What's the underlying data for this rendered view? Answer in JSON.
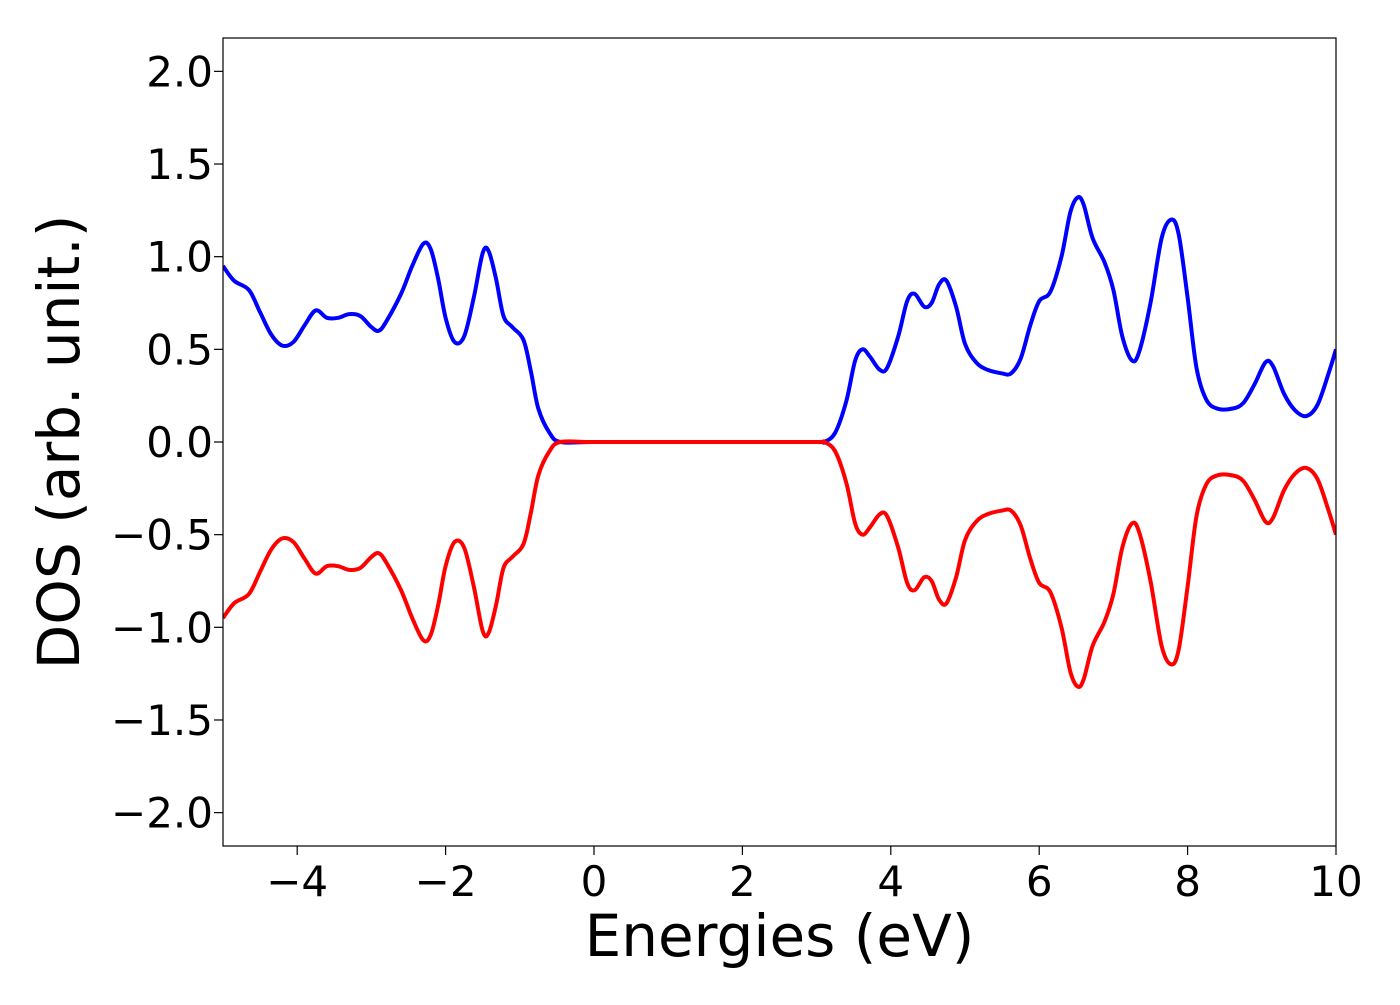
{
  "chart_data": {
    "type": "line",
    "title": "",
    "xlabel": "Energies (eV)",
    "ylabel": "DOS (arb. unit.)",
    "xlim": [
      -5,
      10
    ],
    "ylim": [
      -2.18,
      2.18
    ],
    "x_ticks": [
      -4,
      -2,
      0,
      2,
      4,
      6,
      8,
      10
    ],
    "x_tick_labels": [
      "−4",
      "−2",
      "0",
      "2",
      "4",
      "6",
      "8",
      "10"
    ],
    "y_ticks": [
      2.0,
      1.5,
      1.0,
      0.5,
      0.0,
      -0.5,
      -1.0,
      -1.5,
      -2.0
    ],
    "y_tick_labels": [
      "2.0",
      "1.5",
      "1.0",
      "0.5",
      "0.0",
      "−0.5",
      "−1.0",
      "−1.5",
      "−2.0"
    ],
    "grid": false,
    "legend": "none",
    "series": [
      {
        "color": "#0000ff",
        "points": [
          [
            -5.0,
            0.95
          ],
          [
            -4.85,
            0.87
          ],
          [
            -4.65,
            0.82
          ],
          [
            -4.5,
            0.7
          ],
          [
            -4.35,
            0.58
          ],
          [
            -4.2,
            0.52
          ],
          [
            -4.05,
            0.54
          ],
          [
            -3.9,
            0.63
          ],
          [
            -3.75,
            0.71
          ],
          [
            -3.6,
            0.67
          ],
          [
            -3.45,
            0.67
          ],
          [
            -3.3,
            0.69
          ],
          [
            -3.15,
            0.68
          ],
          [
            -3.0,
            0.62
          ],
          [
            -2.9,
            0.6
          ],
          [
            -2.8,
            0.65
          ],
          [
            -2.6,
            0.8
          ],
          [
            -2.45,
            0.95
          ],
          [
            -2.3,
            1.07
          ],
          [
            -2.2,
            1.04
          ],
          [
            -2.1,
            0.88
          ],
          [
            -2.0,
            0.67
          ],
          [
            -1.88,
            0.54
          ],
          [
            -1.75,
            0.57
          ],
          [
            -1.62,
            0.78
          ],
          [
            -1.5,
            1.02
          ],
          [
            -1.42,
            1.03
          ],
          [
            -1.32,
            0.88
          ],
          [
            -1.22,
            0.68
          ],
          [
            -1.1,
            0.62
          ],
          [
            -0.95,
            0.55
          ],
          [
            -0.85,
            0.38
          ],
          [
            -0.75,
            0.18
          ],
          [
            -0.6,
            0.05
          ],
          [
            -0.45,
            0.0
          ],
          [
            0.0,
            0.0
          ],
          [
            1.0,
            0.0
          ],
          [
            2.0,
            0.0
          ],
          [
            3.0,
            0.0
          ],
          [
            3.1,
            0.0
          ],
          [
            3.25,
            0.05
          ],
          [
            3.4,
            0.22
          ],
          [
            3.52,
            0.44
          ],
          [
            3.62,
            0.5
          ],
          [
            3.72,
            0.46
          ],
          [
            3.85,
            0.39
          ],
          [
            3.95,
            0.4
          ],
          [
            4.1,
            0.57
          ],
          [
            4.22,
            0.76
          ],
          [
            4.32,
            0.8
          ],
          [
            4.45,
            0.73
          ],
          [
            4.55,
            0.75
          ],
          [
            4.65,
            0.85
          ],
          [
            4.75,
            0.87
          ],
          [
            4.88,
            0.73
          ],
          [
            5.0,
            0.53
          ],
          [
            5.15,
            0.43
          ],
          [
            5.3,
            0.39
          ],
          [
            5.5,
            0.37
          ],
          [
            5.62,
            0.37
          ],
          [
            5.75,
            0.45
          ],
          [
            5.88,
            0.63
          ],
          [
            6.0,
            0.76
          ],
          [
            6.15,
            0.81
          ],
          [
            6.3,
            1.0
          ],
          [
            6.42,
            1.24
          ],
          [
            6.52,
            1.32
          ],
          [
            6.6,
            1.28
          ],
          [
            6.72,
            1.1
          ],
          [
            6.88,
            0.97
          ],
          [
            7.0,
            0.82
          ],
          [
            7.12,
            0.57
          ],
          [
            7.25,
            0.44
          ],
          [
            7.35,
            0.49
          ],
          [
            7.5,
            0.75
          ],
          [
            7.65,
            1.1
          ],
          [
            7.78,
            1.2
          ],
          [
            7.88,
            1.12
          ],
          [
            8.0,
            0.78
          ],
          [
            8.12,
            0.4
          ],
          [
            8.25,
            0.23
          ],
          [
            8.4,
            0.18
          ],
          [
            8.6,
            0.18
          ],
          [
            8.75,
            0.21
          ],
          [
            8.9,
            0.31
          ],
          [
            9.05,
            0.43
          ],
          [
            9.15,
            0.41
          ],
          [
            9.3,
            0.26
          ],
          [
            9.45,
            0.17
          ],
          [
            9.6,
            0.14
          ],
          [
            9.75,
            0.2
          ],
          [
            9.9,
            0.37
          ],
          [
            10.0,
            0.5
          ]
        ]
      },
      {
        "color": "#ff0000",
        "points": [
          [
            -5.0,
            -0.95
          ],
          [
            -4.85,
            -0.87
          ],
          [
            -4.65,
            -0.82
          ],
          [
            -4.5,
            -0.7
          ],
          [
            -4.35,
            -0.58
          ],
          [
            -4.2,
            -0.52
          ],
          [
            -4.05,
            -0.54
          ],
          [
            -3.9,
            -0.63
          ],
          [
            -3.75,
            -0.71
          ],
          [
            -3.6,
            -0.67
          ],
          [
            -3.45,
            -0.67
          ],
          [
            -3.3,
            -0.69
          ],
          [
            -3.15,
            -0.68
          ],
          [
            -3.0,
            -0.62
          ],
          [
            -2.9,
            -0.6
          ],
          [
            -2.8,
            -0.65
          ],
          [
            -2.6,
            -0.8
          ],
          [
            -2.45,
            -0.95
          ],
          [
            -2.3,
            -1.07
          ],
          [
            -2.2,
            -1.04
          ],
          [
            -2.1,
            -0.88
          ],
          [
            -2.0,
            -0.67
          ],
          [
            -1.88,
            -0.54
          ],
          [
            -1.75,
            -0.57
          ],
          [
            -1.62,
            -0.78
          ],
          [
            -1.5,
            -1.02
          ],
          [
            -1.42,
            -1.03
          ],
          [
            -1.32,
            -0.88
          ],
          [
            -1.22,
            -0.68
          ],
          [
            -1.1,
            -0.62
          ],
          [
            -0.95,
            -0.55
          ],
          [
            -0.85,
            -0.38
          ],
          [
            -0.75,
            -0.18
          ],
          [
            -0.6,
            -0.05
          ],
          [
            -0.45,
            0.0
          ],
          [
            0.0,
            0.0
          ],
          [
            1.0,
            0.0
          ],
          [
            2.0,
            0.0
          ],
          [
            3.0,
            0.0
          ],
          [
            3.1,
            0.0
          ],
          [
            3.25,
            -0.05
          ],
          [
            3.4,
            -0.22
          ],
          [
            3.52,
            -0.44
          ],
          [
            3.62,
            -0.5
          ],
          [
            3.72,
            -0.46
          ],
          [
            3.85,
            -0.39
          ],
          [
            3.95,
            -0.4
          ],
          [
            4.1,
            -0.57
          ],
          [
            4.22,
            -0.76
          ],
          [
            4.32,
            -0.8
          ],
          [
            4.45,
            -0.73
          ],
          [
            4.55,
            -0.75
          ],
          [
            4.65,
            -0.85
          ],
          [
            4.75,
            -0.87
          ],
          [
            4.88,
            -0.73
          ],
          [
            5.0,
            -0.53
          ],
          [
            5.15,
            -0.43
          ],
          [
            5.3,
            -0.39
          ],
          [
            5.5,
            -0.37
          ],
          [
            5.62,
            -0.37
          ],
          [
            5.75,
            -0.45
          ],
          [
            5.88,
            -0.63
          ],
          [
            6.0,
            -0.76
          ],
          [
            6.15,
            -0.81
          ],
          [
            6.3,
            -1.0
          ],
          [
            6.42,
            -1.24
          ],
          [
            6.52,
            -1.32
          ],
          [
            6.6,
            -1.28
          ],
          [
            6.72,
            -1.1
          ],
          [
            6.88,
            -0.97
          ],
          [
            7.0,
            -0.82
          ],
          [
            7.12,
            -0.57
          ],
          [
            7.25,
            -0.44
          ],
          [
            7.35,
            -0.49
          ],
          [
            7.5,
            -0.75
          ],
          [
            7.65,
            -1.1
          ],
          [
            7.78,
            -1.2
          ],
          [
            7.88,
            -1.12
          ],
          [
            8.0,
            -0.78
          ],
          [
            8.12,
            -0.4
          ],
          [
            8.25,
            -0.23
          ],
          [
            8.4,
            -0.18
          ],
          [
            8.6,
            -0.18
          ],
          [
            8.75,
            -0.21
          ],
          [
            8.9,
            -0.31
          ],
          [
            9.05,
            -0.43
          ],
          [
            9.15,
            -0.41
          ],
          [
            9.3,
            -0.26
          ],
          [
            9.45,
            -0.17
          ],
          [
            9.6,
            -0.14
          ],
          [
            9.75,
            -0.2
          ],
          [
            9.9,
            -0.37
          ],
          [
            10.0,
            -0.5
          ]
        ]
      }
    ]
  }
}
